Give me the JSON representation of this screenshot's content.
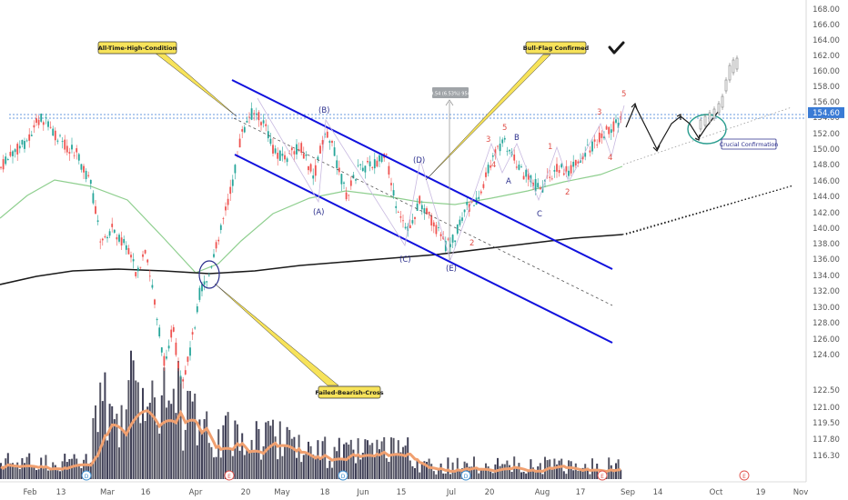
{
  "chart_data": {
    "type": "candlestick",
    "price_axis": {
      "ticks": [
        168,
        166,
        164,
        162,
        160,
        158,
        156,
        154,
        152,
        150,
        148,
        146,
        144,
        142,
        140,
        138,
        136,
        134,
        132,
        130,
        128,
        126,
        124,
        122.5,
        121,
        119.5,
        117.8,
        116.3
      ],
      "tick_labels": [
        "168.00",
        "166.00",
        "164.00",
        "162.00",
        "160.00",
        "158.00",
        "156.00",
        "154.00",
        "152.00",
        "150.00",
        "148.00",
        "146.00",
        "144.00",
        "142.00",
        "140.00",
        "138.00",
        "136.00",
        "134.00",
        "132.00",
        "130.00",
        "128.00",
        "126.00",
        "124.00",
        "122.50",
        "121.00",
        "119.50",
        "117.80",
        "116.30"
      ],
      "range": [
        115.5,
        169
      ]
    },
    "time_axis": {
      "labels": [
        "Feb",
        "13",
        "Mar",
        "16",
        "Apr",
        "20",
        "May",
        "18",
        "Jun",
        "15",
        "Jul",
        "20",
        "Aug",
        "17",
        "Sep",
        "14",
        "Oct",
        "19",
        "Nov"
      ]
    },
    "resistance_level": 154.6,
    "callouts": [
      {
        "id": "ath",
        "text": "All-Time-High-Condition"
      },
      {
        "id": "bullflag",
        "text": "Bull-Flag Confirmed"
      },
      {
        "id": "bearish",
        "text": "Failed-Bearish-Cross"
      },
      {
        "id": "crucial",
        "text": "Crucial Confirmation"
      }
    ],
    "measure_label": "9.54 (6.53%) 954",
    "wave_labels_blue": [
      "(B)",
      "(A)",
      "(D)",
      "(C)",
      "(E)",
      "A",
      "B",
      "C"
    ],
    "wave_labels_red": [
      "3",
      "5",
      "4",
      "1",
      "2",
      "3",
      "4",
      "5",
      "2"
    ],
    "event_markers": [
      "D",
      "E",
      "D",
      "D",
      "E",
      "E"
    ],
    "colors": {
      "up": "#26a69a",
      "down": "#ef5350",
      "channel": "#1111dd",
      "ma_long": "#1a1a1a",
      "ma_mid": "#7cc47c",
      "volume_ma": "#f0a070",
      "resistance": "#3a7bd5",
      "callout_fill": "#f7e35a"
    }
  }
}
